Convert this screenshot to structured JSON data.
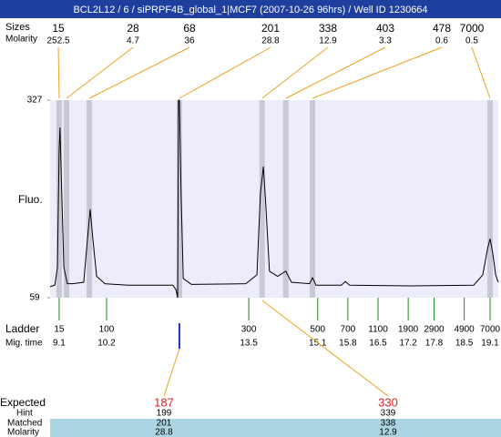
{
  "chart_data": {
    "type": "line",
    "title": "BCL2L12 / 6 / siPRPF4B_global_1|MCF7 (2007-10-26 96hrs) / Well ID 1230664",
    "ylabel": "Fluo.",
    "ylim": [
      59,
      327
    ],
    "yticks": [
      59,
      327
    ],
    "xlim": [
      8.89,
      19.29
    ],
    "trace": {
      "x": [
        8.89,
        9.0,
        9.06,
        9.1,
        9.12,
        9.16,
        9.21,
        9.29,
        9.42,
        9.67,
        9.76,
        9.82,
        9.88,
        9.97,
        10.16,
        10.69,
        11.74,
        11.81,
        11.85,
        11.87,
        11.89,
        11.93,
        11.98,
        12.17,
        13.43,
        13.69,
        13.77,
        13.84,
        13.9,
        13.98,
        14.17,
        14.36,
        14.49,
        14.91,
        14.98,
        15.06,
        15.65,
        15.74,
        15.84,
        17.24,
        18.72,
        18.93,
        19.04,
        19.1,
        19.16,
        19.23,
        19.29
      ],
      "y": [
        74,
        76,
        100,
        260,
        290,
        200,
        100,
        78,
        78,
        80,
        140,
        179,
        140,
        88,
        78,
        76,
        76,
        70,
        59,
        327,
        327,
        200,
        85,
        77,
        78,
        90,
        200,
        237,
        180,
        95,
        88,
        95,
        80,
        78,
        86,
        76,
        76,
        81,
        76,
        75,
        76,
        90,
        125,
        139,
        120,
        90,
        80
      ]
    },
    "peaks": {
      "size_label": "Sizes",
      "molarity_label": "Molarity",
      "sizes": [
        15,
        28,
        68,
        201,
        338,
        403,
        478,
        7000
      ],
      "molarity": [
        252.5,
        4.7,
        36,
        28.8,
        12.9,
        3.3,
        0.6,
        0.5
      ],
      "times": [
        9.1,
        9.27,
        9.8,
        11.89,
        13.81,
        14.36,
        14.98,
        19.1
      ]
    },
    "ladder": {
      "label": "Ladder",
      "time_label": "Mig. time",
      "sizes": [
        15,
        100,
        300,
        500,
        700,
        1100,
        1900,
        2900,
        4900,
        7000
      ],
      "times": [
        9.1,
        10.2,
        13.5,
        15.1,
        15.8,
        16.5,
        17.2,
        17.8,
        18.5,
        19.1
      ]
    },
    "expected": {
      "label": "Expected",
      "hint_label": "Hint",
      "matched_label": "Matched",
      "molarity_label": "Molarity",
      "values": [
        187,
        330
      ],
      "hint": [
        199,
        339
      ],
      "matched": [
        201,
        338
      ],
      "molarity": [
        28.8,
        12.9
      ],
      "peak_index": [
        3,
        4
      ]
    }
  }
}
